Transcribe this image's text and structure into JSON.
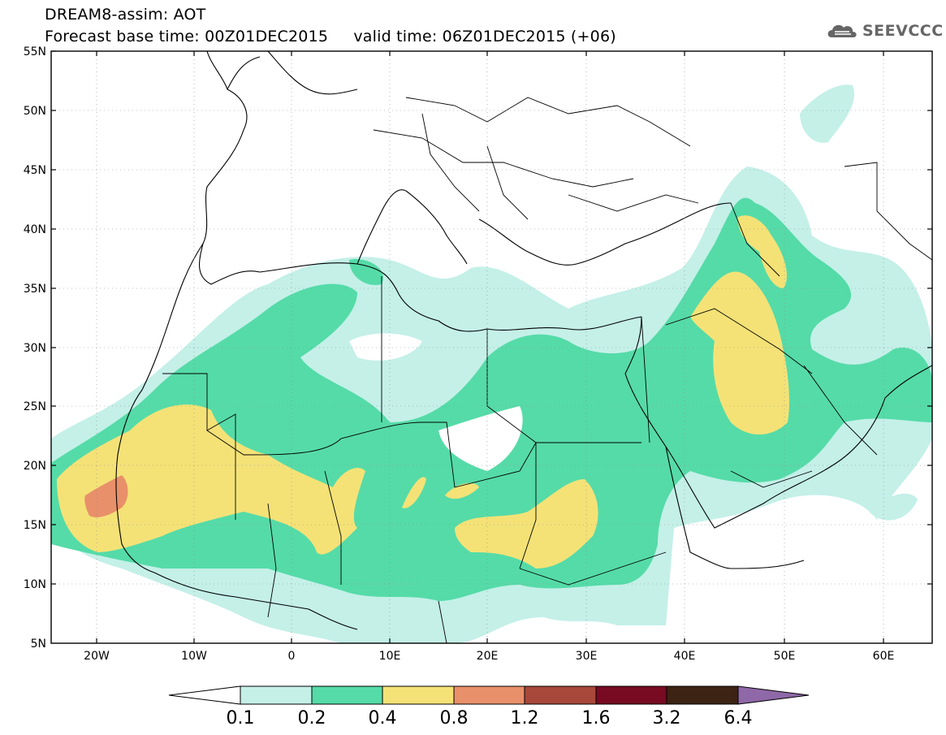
{
  "header": {
    "title_line1": "DREAM8-assim: AOT",
    "title_line2": "Forecast base time: 00Z01DEC2015     valid time: 06Z01DEC2015 (+06)"
  },
  "logo": {
    "text": "SEEVCCC",
    "icon": "cloud-icon",
    "color": "#666666"
  },
  "map": {
    "lat_labels": [
      "55N",
      "50N",
      "45N",
      "40N",
      "35N",
      "30N",
      "25N",
      "20N",
      "15N",
      "10N",
      "5N"
    ],
    "lon_labels": [
      "20W",
      "10W",
      "0",
      "10E",
      "20E",
      "30E",
      "40E",
      "50E",
      "60E"
    ],
    "lon_range": [
      -25,
      65
    ],
    "lat_range": [
      5,
      55
    ]
  },
  "colorbar": {
    "labels": [
      "0.1",
      "0.2",
      "0.4",
      "0.8",
      "1.2",
      "1.6",
      "3.2",
      "6.4"
    ],
    "colors": [
      "#ffffff",
      "#c4f0e8",
      "#55dba8",
      "#f4e277",
      "#e8906a",
      "#a8483a",
      "#780a22",
      "#3c2313",
      "#8f68a8"
    ]
  },
  "palette": {
    "c01": "#c4f0e8",
    "c02": "#55dba8",
    "c04": "#f4e277",
    "c08": "#e8906a"
  }
}
